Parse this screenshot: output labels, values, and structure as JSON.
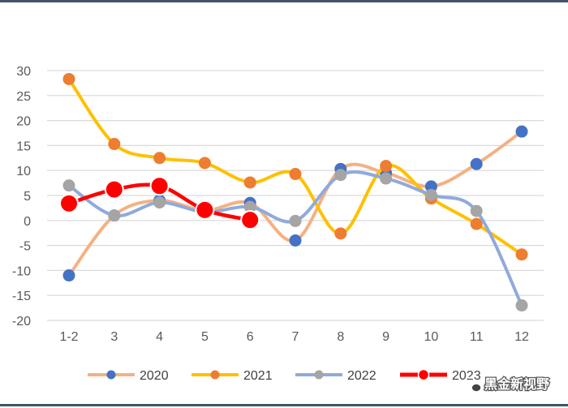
{
  "chart_data": {
    "type": "line",
    "title": "",
    "xlabel": "",
    "ylabel": "",
    "categories": [
      "1-2",
      "3",
      "4",
      "5",
      "6",
      "7",
      "8",
      "9",
      "10",
      "11",
      "12"
    ],
    "ylim": [
      -20,
      30
    ],
    "yticks": [
      30,
      25,
      20,
      15,
      10,
      5,
      0,
      -5,
      -10,
      -15,
      -20
    ],
    "grid": true,
    "legend_position": "bottom",
    "series": [
      {
        "name": "2020",
        "line_color": "#f4b183",
        "marker_color": "#4472c4",
        "values": [
          -11,
          1,
          4,
          2,
          3.5,
          -4,
          10.3,
          9.5,
          6.8,
          11.3,
          17.8
        ]
      },
      {
        "name": "2021",
        "line_color": "#ffc000",
        "marker_color": "#ed7d31",
        "values": [
          28.3,
          15.3,
          12.5,
          11.5,
          7.6,
          9.3,
          -2.6,
          10.9,
          4.4,
          -0.7,
          -6.8
        ]
      },
      {
        "name": "2022",
        "line_color": "#8faadc",
        "marker_color": "#a5a5a5",
        "values": [
          7,
          1,
          3.6,
          1.7,
          2.7,
          -0.1,
          9.1,
          8.4,
          5.1,
          1.9,
          -17
        ]
      },
      {
        "name": "2023",
        "line_color": "#ff0000",
        "marker_color": "#ff0000",
        "values": [
          3.4,
          6.2,
          6.9,
          2.1,
          0.1,
          null,
          null,
          null,
          null,
          null,
          null
        ]
      }
    ]
  },
  "watermark": {
    "icon": "wechat-icon",
    "text": "黑金新视野"
  }
}
